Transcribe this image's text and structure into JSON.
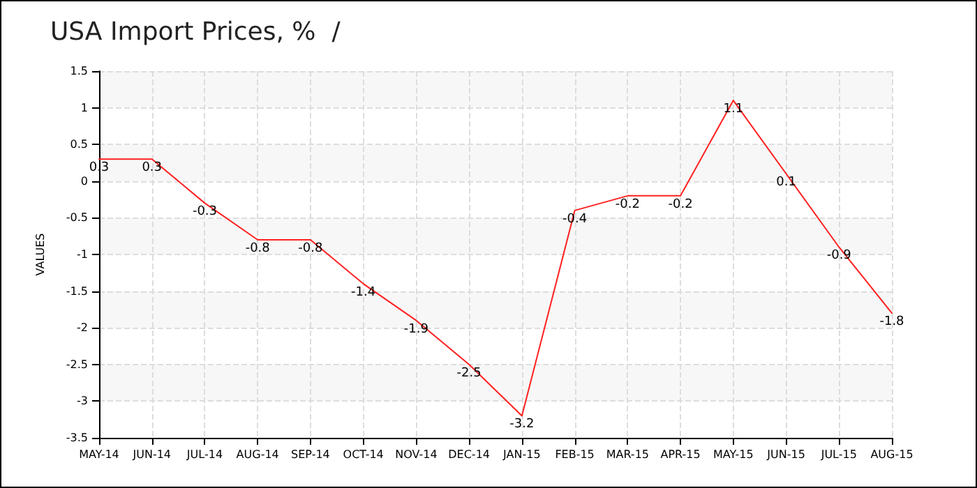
{
  "chart_data": {
    "type": "line",
    "title": "USA Import Prices, %  /",
    "ylabel": "VALUES",
    "categories": [
      "MAY-14",
      "JUN-14",
      "JUL-14",
      "AUG-14",
      "SEP-14",
      "OCT-14",
      "NOV-14",
      "DEC-14",
      "JAN-15",
      "FEB-15",
      "MAR-15",
      "APR-15",
      "MAY-15",
      "JUN-15",
      "JUL-15",
      "AUG-15"
    ],
    "series": [
      {
        "color": "#ff2020",
        "values": [
          0.3,
          0.3,
          -0.3,
          -0.8,
          -0.8,
          -1.4,
          -1.9,
          -2.5,
          -3.2,
          -0.4,
          -0.2,
          -0.2,
          1.1,
          0.1,
          -0.9,
          -1.8
        ]
      }
    ],
    "ylim": [
      -3.5,
      1.5
    ],
    "yticks": [
      -3.5,
      -3,
      -2.5,
      -2,
      -1.5,
      -1,
      -0.5,
      0,
      0.5,
      1,
      1.5
    ],
    "grid": true,
    "data_labels": true,
    "marker": "none",
    "line_style": "solid"
  }
}
